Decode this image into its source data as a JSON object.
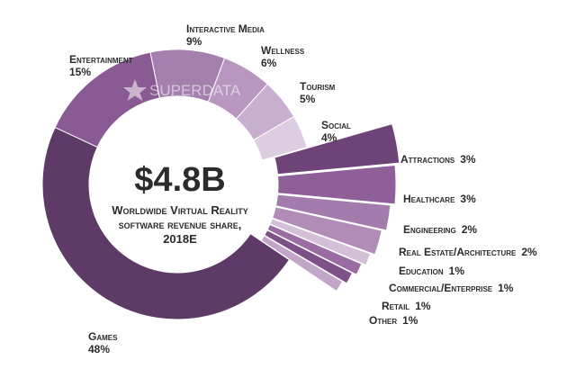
{
  "chart_data": {
    "type": "pie",
    "title": "$4.8B",
    "subtitle": [
      "Worldwide Virtual Reality",
      "software revenue share,",
      "2018E"
    ],
    "watermark": "SUPERDATA",
    "categories": [
      "Entertainment",
      "Interactive Media",
      "Wellness",
      "Tourism",
      "Social",
      "Attractions",
      "Healthcare",
      "Engineering",
      "Real Estate/Architecture",
      "Education",
      "Commercial/Enterprise",
      "Retail",
      "Other",
      "Games"
    ],
    "values": [
      15,
      9,
      6,
      5,
      4,
      3,
      3,
      2,
      2,
      1,
      1,
      1,
      1,
      48
    ],
    "value_labels": [
      "15%",
      "9%",
      "6%",
      "5%",
      "4%",
      "3%",
      "3%",
      "2%",
      "2%",
      "1%",
      "1%",
      "1%",
      "1%",
      "48%"
    ],
    "colors": [
      "#8a5a94",
      "#a57fae",
      "#b896c0",
      "#c9afcf",
      "#ddcde1",
      "#6e4478",
      "#8e5f98",
      "#a47bad",
      "#b08cb7",
      "#d3bfd8",
      "#9a6ca3",
      "#7e5088",
      "#c2a6c8",
      "#5e3b66"
    ],
    "exploded": [
      false,
      false,
      false,
      false,
      false,
      true,
      true,
      true,
      true,
      true,
      true,
      true,
      true,
      false
    ]
  }
}
